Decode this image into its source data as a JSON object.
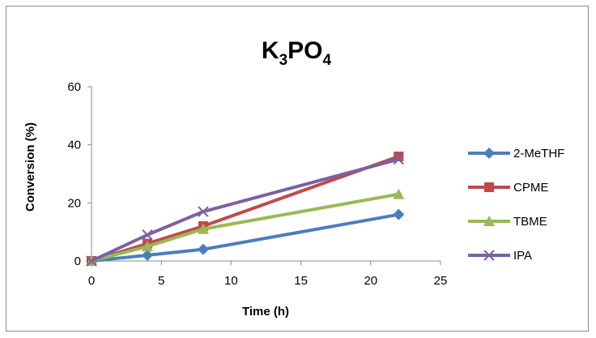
{
  "chart_data": {
    "type": "line",
    "title_main": "K",
    "title_sub1": "3",
    "title_mid": "PO",
    "title_sub2": "4",
    "xlabel": "Time (h)",
    "ylabel": "Conversion (%)",
    "xlim": [
      0,
      25
    ],
    "ylim": [
      0,
      60
    ],
    "xticks": [
      0,
      5,
      10,
      15,
      20,
      25
    ],
    "yticks": [
      0,
      20,
      40,
      60
    ],
    "grid": "horizontal",
    "legend_position": "right",
    "x": [
      0,
      4,
      8,
      22
    ],
    "series": [
      {
        "name": "2-MeTHF",
        "values": [
          0,
          2,
          4,
          16
        ],
        "color": "#4a7ebb",
        "marker": "diamond"
      },
      {
        "name": "CPME",
        "values": [
          0,
          6,
          12,
          36
        ],
        "color": "#be4b48",
        "marker": "square"
      },
      {
        "name": "TBME",
        "values": [
          0,
          5,
          11,
          23
        ],
        "color": "#98b954",
        "marker": "triangle"
      },
      {
        "name": "IPA",
        "values": [
          0,
          9,
          17,
          35
        ],
        "color": "#7d60a0",
        "marker": "x"
      }
    ]
  }
}
